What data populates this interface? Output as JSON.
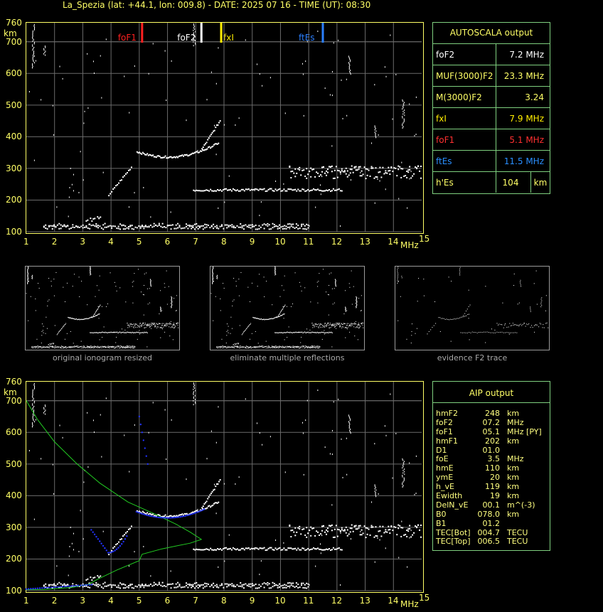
{
  "header": {
    "title": "La_Spezia (lat: +44.1, lon: 009.8) - DATE: 2025 07 16 - TIME (UT): 08:30"
  },
  "axes": {
    "y_ticks": [
      "760",
      "700",
      "600",
      "500",
      "400",
      "300",
      "200",
      "100"
    ],
    "y_unit": "km",
    "x_ticks": [
      "1",
      "2",
      "3",
      "4",
      "5",
      "6",
      "7",
      "8",
      "9",
      "10",
      "11",
      "12",
      "13",
      "14",
      "15"
    ],
    "x_unit": "MHz"
  },
  "markers": [
    {
      "label": "foF1",
      "freq": 5.1,
      "color": "#ff2020"
    },
    {
      "label": "foF2",
      "freq": 7.2,
      "color": "#ffffff"
    },
    {
      "label": "fxI",
      "freq": 7.9,
      "color": "#ffee00"
    },
    {
      "label": "ftEs",
      "freq": 11.5,
      "color": "#2a7fff"
    }
  ],
  "autoscala": {
    "title": "AUTOSCALA output",
    "rows": [
      {
        "key": "foF2",
        "value": "7.2 MHz",
        "color": "#ffffff"
      },
      {
        "key": "MUF(3000)F2",
        "value": "23.3 MHz",
        "color": "#ffff66"
      },
      {
        "key": "M(3000)F2",
        "value": "3.24",
        "color": "#ffff66"
      },
      {
        "key": "fxI",
        "value": "7.9 MHz",
        "color": "#ffee00"
      },
      {
        "key": "foF1",
        "value": "5.1 MHz",
        "color": "#ff3030"
      },
      {
        "key": "ftEs",
        "value": "11.5 MHz",
        "color": "#2a8fff"
      },
      {
        "key": "h'Es",
        "value": "104",
        "unit": "km",
        "color": "#ffff66"
      }
    ]
  },
  "thumbnails": [
    {
      "caption": "original ionogram resized"
    },
    {
      "caption": "eliminate multiple reflections"
    },
    {
      "caption": "evidence F2 trace"
    }
  ],
  "aip": {
    "title": "AIP output",
    "rows": [
      [
        "hmF2",
        "248",
        "km"
      ],
      [
        "foF2",
        "07.2",
        "MHz"
      ],
      [
        "foF1",
        "05.1",
        "MHz  [PY]"
      ],
      [
        "hmF1",
        "202",
        "km"
      ],
      [
        "D1",
        "01.0",
        ""
      ],
      [
        "foE",
        "3.5",
        "MHz"
      ],
      [
        "hmE",
        "110",
        "km"
      ],
      [
        "ymE",
        "20",
        "km"
      ],
      [
        "h_vE",
        "119",
        "km"
      ],
      [
        "Ewidth",
        "19",
        "km"
      ],
      [
        "DelN_vE",
        "00.1",
        "m^(-3)"
      ],
      [
        "B0",
        "078.0",
        "km"
      ],
      [
        "B1",
        "01.2",
        ""
      ],
      [
        "TEC[Bot]",
        "004.7",
        "TECU"
      ],
      [
        "TEC[Top]",
        "006.5",
        "TECU"
      ]
    ]
  },
  "colors": {
    "axis": "#ffff66",
    "grid": "#808080",
    "trace": "#ffffff",
    "profile": "#22cc22",
    "model_points": "#2233ff"
  }
}
